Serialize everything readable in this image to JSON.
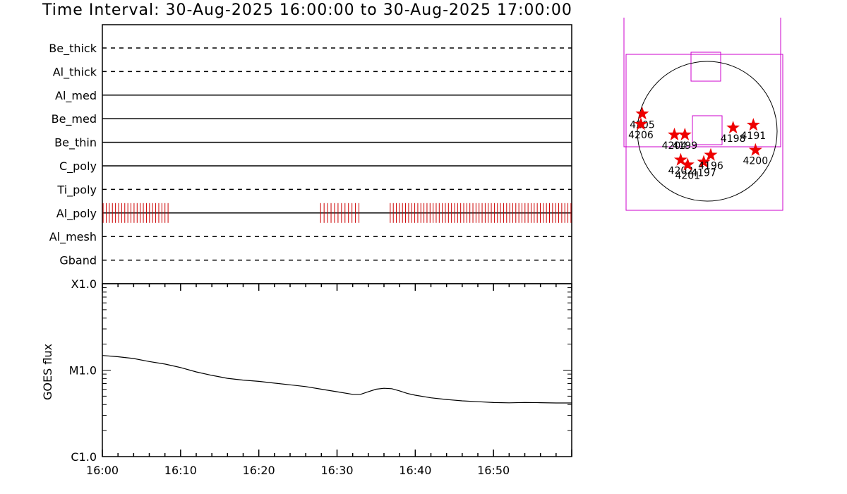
{
  "title": "Time Interval: 30-Aug-2025 16:00:00 to 30-Aug-2025 17:00:00",
  "chart_data": [
    {
      "type": "timeline",
      "x_range_minutes": [
        0,
        60
      ],
      "rows": [
        {
          "name": "Be_thick",
          "style": "dashed"
        },
        {
          "name": "Al_thick",
          "style": "dashed"
        },
        {
          "name": "Al_med",
          "style": "solid"
        },
        {
          "name": "Be_med",
          "style": "solid"
        },
        {
          "name": "Be_thin",
          "style": "solid"
        },
        {
          "name": "C_poly",
          "style": "solid"
        },
        {
          "name": "Ti_poly",
          "style": "dashed"
        },
        {
          "name": "Al_poly",
          "style": "solid"
        },
        {
          "name": "Al_mesh",
          "style": "dashed"
        },
        {
          "name": "Gband",
          "style": "dashed"
        }
      ],
      "exposures": {
        "row": "Al_poly",
        "color": "#cc0000",
        "segments": [
          {
            "start": 0.1,
            "end": 8.4,
            "count": 22
          },
          {
            "start": 27.9,
            "end": 32.8,
            "count": 12
          },
          {
            "start": 36.8,
            "end": 59.9,
            "count": 60
          }
        ]
      }
    },
    {
      "type": "line",
      "ylabel": "GOES flux",
      "ylog": true,
      "y_tick_labels": [
        "X1.0",
        "M1.0",
        "C1.0"
      ],
      "x_tick_labels": [
        "16:00",
        "16:10",
        "16:20",
        "16:30",
        "16:40",
        "16:50"
      ],
      "x_range_minutes": [
        0,
        60
      ],
      "ylim_decades": [
        0,
        2
      ],
      "series": [
        {
          "x": [
            0,
            2,
            4,
            6,
            8,
            10,
            12,
            14,
            16,
            18,
            20,
            22,
            24,
            26,
            28,
            30,
            32,
            33,
            34,
            35,
            36,
            37,
            38,
            39,
            40,
            42,
            44,
            46,
            48,
            50,
            52,
            54,
            56,
            58,
            60
          ],
          "y": [
            1.17,
            1.155,
            1.135,
            1.1,
            1.07,
            1.03,
            0.98,
            0.94,
            0.905,
            0.885,
            0.87,
            0.85,
            0.83,
            0.81,
            0.78,
            0.75,
            0.72,
            0.72,
            0.75,
            0.78,
            0.79,
            0.785,
            0.76,
            0.73,
            0.71,
            0.68,
            0.66,
            0.645,
            0.635,
            0.625,
            0.622,
            0.626,
            0.624,
            0.62,
            0.62
          ]
        }
      ]
    },
    {
      "type": "scatter",
      "description": "solar disk with active regions",
      "marker": "star",
      "color": "#ee0000",
      "disk": {
        "center": [
          0,
          0
        ],
        "radius": 1.0
      },
      "points": [
        {
          "label": "4205",
          "x": -0.93,
          "y": 0.25
        },
        {
          "label": "4206",
          "x": -0.95,
          "y": 0.1
        },
        {
          "label": "4204",
          "x": -0.47,
          "y": -0.05
        },
        {
          "label": "4199",
          "x": -0.32,
          "y": -0.05
        },
        {
          "label": "4198",
          "x": 0.37,
          "y": 0.05
        },
        {
          "label": "4191",
          "x": 0.66,
          "y": 0.09
        },
        {
          "label": "4202",
          "x": -0.38,
          "y": -0.41
        },
        {
          "label": "4201",
          "x": -0.28,
          "y": -0.48
        },
        {
          "label": "4197",
          "x": -0.05,
          "y": -0.44
        },
        {
          "label": "4196",
          "x": 0.05,
          "y": -0.34
        },
        {
          "label": "4200",
          "x": 0.69,
          "y": -0.27
        }
      ],
      "fov_color": "#cc00cc"
    }
  ]
}
